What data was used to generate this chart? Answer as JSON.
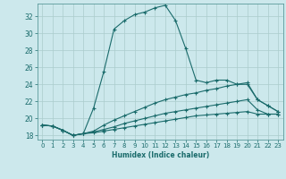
{
  "xlabel": "Humidex (Indice chaleur)",
  "bg_color": "#cce8ec",
  "grid_color": "#aacccc",
  "line_color": "#1a6b6b",
  "spine_color": "#5a9a9a",
  "xlim": [
    -0.5,
    23.5
  ],
  "ylim": [
    17.5,
    33.5
  ],
  "xticks": [
    0,
    1,
    2,
    3,
    4,
    5,
    6,
    7,
    8,
    9,
    10,
    11,
    12,
    13,
    14,
    15,
    16,
    17,
    18,
    19,
    20,
    21,
    22,
    23
  ],
  "yticks": [
    18,
    20,
    22,
    24,
    26,
    28,
    30,
    32
  ],
  "line1_x": [
    0,
    1,
    2,
    3,
    4,
    5,
    6,
    7,
    8,
    9,
    10,
    11,
    12,
    13,
    14,
    15,
    16,
    17,
    18,
    19,
    20,
    21,
    22,
    23
  ],
  "line1_y": [
    19.2,
    19.1,
    18.6,
    18.0,
    18.2,
    21.2,
    25.5,
    30.5,
    31.5,
    32.2,
    32.5,
    33.0,
    33.3,
    31.5,
    28.2,
    24.5,
    24.2,
    24.5,
    24.5,
    24.0,
    24.0,
    22.2,
    21.5,
    20.8
  ],
  "line2_x": [
    0,
    1,
    2,
    3,
    4,
    5,
    6,
    7,
    8,
    9,
    10,
    11,
    12,
    13,
    14,
    15,
    16,
    17,
    18,
    19,
    20,
    21,
    22,
    23
  ],
  "line2_y": [
    19.2,
    19.1,
    18.6,
    18.0,
    18.2,
    18.5,
    19.2,
    19.8,
    20.3,
    20.8,
    21.3,
    21.8,
    22.2,
    22.5,
    22.8,
    23.0,
    23.3,
    23.5,
    23.8,
    24.0,
    24.2,
    22.2,
    21.5,
    20.8
  ],
  "line3_x": [
    0,
    1,
    2,
    3,
    4,
    5,
    6,
    7,
    8,
    9,
    10,
    11,
    12,
    13,
    14,
    15,
    16,
    17,
    18,
    19,
    20,
    21,
    22,
    23
  ],
  "line3_y": [
    19.2,
    19.1,
    18.6,
    18.0,
    18.2,
    18.4,
    18.7,
    19.0,
    19.4,
    19.7,
    20.0,
    20.3,
    20.6,
    20.8,
    21.0,
    21.2,
    21.4,
    21.6,
    21.8,
    22.0,
    22.2,
    21.0,
    20.5,
    20.5
  ],
  "line4_x": [
    0,
    1,
    2,
    3,
    4,
    5,
    6,
    7,
    8,
    9,
    10,
    11,
    12,
    13,
    14,
    15,
    16,
    17,
    18,
    19,
    20,
    21,
    22,
    23
  ],
  "line4_y": [
    19.2,
    19.1,
    18.6,
    18.0,
    18.2,
    18.3,
    18.5,
    18.7,
    18.9,
    19.1,
    19.3,
    19.5,
    19.7,
    19.9,
    20.1,
    20.3,
    20.4,
    20.5,
    20.6,
    20.7,
    20.8,
    20.5,
    20.5,
    20.5
  ]
}
